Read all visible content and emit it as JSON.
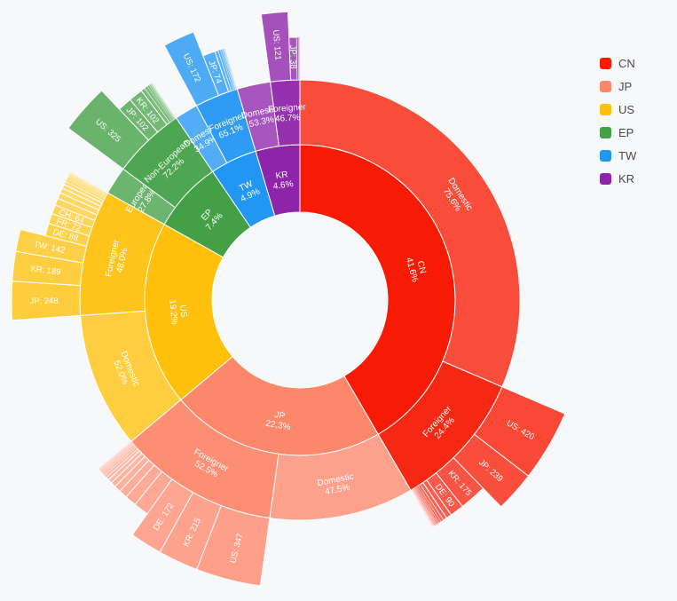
{
  "chart_data": {
    "type": "sunburst",
    "title": "",
    "legend_position": "top-right",
    "colors": {
      "CN": "#f71a04",
      "JP": "#fc876b",
      "US": "#fec00a",
      "EP": "#44a047",
      "TW": "#2196f3",
      "KR": "#8e24aa"
    },
    "legend": [
      {
        "key": "CN",
        "label": "CN"
      },
      {
        "key": "JP",
        "label": "JP"
      },
      {
        "key": "US",
        "label": "US"
      },
      {
        "key": "EP",
        "label": "EP"
      },
      {
        "key": "TW",
        "label": "TW"
      },
      {
        "key": "KR",
        "label": "KR"
      }
    ],
    "order": [
      "CN",
      "JP",
      "US",
      "EP",
      "TW",
      "KR"
    ],
    "nodes": [
      {
        "name": "CN",
        "share": 41.6,
        "label": "CN\n41.6%",
        "children": [
          {
            "name": "Domestic",
            "share": 75.6,
            "label": "Domestic\n75.6%"
          },
          {
            "name": "Foreigner",
            "share": 24.4,
            "label": "Foreigner\n24.4%",
            "children": [
              {
                "name": "US",
                "value": 420,
                "label": "US: 420"
              },
              {
                "name": "JP",
                "value": 239,
                "label": "JP: 239"
              },
              {
                "name": "KR",
                "value": 175,
                "label": "KR: 175"
              },
              {
                "name": "DE",
                "value": 90,
                "label": "DE: 90"
              },
              {
                "name": "other",
                "value": 35,
                "label": ""
              },
              {
                "name": "other",
                "value": 25,
                "label": ""
              },
              {
                "name": "other",
                "value": 18,
                "label": ""
              },
              {
                "name": "other",
                "value": 14,
                "label": ""
              },
              {
                "name": "other",
                "value": 11,
                "label": ""
              },
              {
                "name": "other",
                "value": 9,
                "label": ""
              },
              {
                "name": "other",
                "value": 7,
                "label": ""
              },
              {
                "name": "other",
                "value": 6,
                "label": ""
              },
              {
                "name": "other",
                "value": 5,
                "label": ""
              },
              {
                "name": "other",
                "value": 4,
                "label": ""
              },
              {
                "name": "other",
                "value": 3,
                "label": ""
              },
              {
                "name": "other",
                "value": 3,
                "label": ""
              },
              {
                "name": "other",
                "value": 2,
                "label": ""
              },
              {
                "name": "other",
                "value": 2,
                "label": ""
              }
            ]
          }
        ]
      },
      {
        "name": "JP",
        "share": 22.3,
        "label": "JP\n22.3%",
        "children": [
          {
            "name": "Domestic",
            "share": 47.5,
            "label": "Domestic\n47.5%"
          },
          {
            "name": "Foreigner",
            "share": 52.5,
            "label": "Foreigner\n52.5%",
            "children": [
              {
                "name": "US",
                "value": 347,
                "label": "US: 347"
              },
              {
                "name": "KR",
                "value": 215,
                "label": "KR: 215"
              },
              {
                "name": "DE",
                "value": 172,
                "label": "DE: 172"
              },
              {
                "name": "other",
                "value": 89,
                "label": ""
              },
              {
                "name": "other",
                "value": 68,
                "label": ""
              },
              {
                "name": "other",
                "value": 50,
                "label": ""
              },
              {
                "name": "other",
                "value": 38,
                "label": ""
              },
              {
                "name": "other",
                "value": 30,
                "label": ""
              },
              {
                "name": "other",
                "value": 24,
                "label": ""
              },
              {
                "name": "other",
                "value": 19,
                "label": ""
              },
              {
                "name": "other",
                "value": 15,
                "label": ""
              },
              {
                "name": "other",
                "value": 12,
                "label": ""
              },
              {
                "name": "other",
                "value": 10,
                "label": ""
              },
              {
                "name": "other",
                "value": 8,
                "label": ""
              },
              {
                "name": "other",
                "value": 7,
                "label": ""
              },
              {
                "name": "other",
                "value": 6,
                "label": ""
              },
              {
                "name": "other",
                "value": 5,
                "label": ""
              },
              {
                "name": "other",
                "value": 4,
                "label": ""
              }
            ]
          }
        ]
      },
      {
        "name": "US",
        "share": 19.2,
        "label": "US\n19.2%",
        "children": [
          {
            "name": "Domestic",
            "share": 52.0,
            "label": "Domestic\n52.0%"
          },
          {
            "name": "Foreigner",
            "share": 48.0,
            "label": "Foreigner\n48.0%",
            "children": [
              {
                "name": "JP",
                "value": 248,
                "label": "JP: 248"
              },
              {
                "name": "KR",
                "value": 189,
                "label": "KR: 189"
              },
              {
                "name": "TW",
                "value": 142,
                "label": "TW: 142"
              },
              {
                "name": "DE",
                "value": 88,
                "label": "DE: 88"
              },
              {
                "name": "FR",
                "value": 72,
                "label": "FR: 72"
              },
              {
                "name": "CH",
                "value": 64,
                "label": "CH: 64"
              },
              {
                "name": "other",
                "value": 50,
                "label": ""
              },
              {
                "name": "other",
                "value": 42,
                "label": ""
              },
              {
                "name": "other",
                "value": 35,
                "label": ""
              },
              {
                "name": "other",
                "value": 29,
                "label": ""
              },
              {
                "name": "other",
                "value": 24,
                "label": ""
              },
              {
                "name": "other",
                "value": 20,
                "label": ""
              },
              {
                "name": "other",
                "value": 16,
                "label": ""
              },
              {
                "name": "other",
                "value": 12,
                "label": ""
              },
              {
                "name": "other",
                "value": 9,
                "label": ""
              },
              {
                "name": "other",
                "value": 7,
                "label": ""
              },
              {
                "name": "other",
                "value": 5,
                "label": ""
              },
              {
                "name": "other",
                "value": 4,
                "label": ""
              }
            ]
          }
        ]
      },
      {
        "name": "EP",
        "share": 7.4,
        "label": "EP\n7.4%",
        "children": [
          {
            "name": "European",
            "share": 27.8,
            "label": "European\n27.8%"
          },
          {
            "name": "Non-European",
            "share": 72.2,
            "label": "Non-European\n72.2%",
            "children": [
              {
                "name": "US",
                "value": 325,
                "label": "US: 325"
              },
              {
                "name": "JP",
                "value": 102,
                "label": "JP: 102"
              },
              {
                "name": "KR",
                "value": 102,
                "label": "KR: 102"
              },
              {
                "name": "other",
                "value": 30,
                "label": ""
              },
              {
                "name": "other",
                "value": 22,
                "label": ""
              },
              {
                "name": "other",
                "value": 15,
                "label": ""
              },
              {
                "name": "other",
                "value": 10,
                "label": ""
              },
              {
                "name": "other",
                "value": 7,
                "label": ""
              },
              {
                "name": "other",
                "value": 5,
                "label": ""
              },
              {
                "name": "other",
                "value": 4,
                "label": ""
              },
              {
                "name": "other",
                "value": 3,
                "label": ""
              }
            ]
          }
        ]
      },
      {
        "name": "TW",
        "share": 4.9,
        "label": "TW\n4.9%",
        "children": [
          {
            "name": "Domestic",
            "share": 34.9,
            "label": "Domestic\n34.9%"
          },
          {
            "name": "Foreigner",
            "share": 65.1,
            "label": "Foreigner\n65.1%",
            "children": [
              {
                "name": "US",
                "value": 172,
                "label": "US: 172"
              },
              {
                "name": "JP",
                "value": 74,
                "label": "JP: 74"
              },
              {
                "name": "other",
                "value": 20,
                "label": ""
              },
              {
                "name": "other",
                "value": 14,
                "label": ""
              },
              {
                "name": "other",
                "value": 10,
                "label": ""
              },
              {
                "name": "other",
                "value": 7,
                "label": ""
              },
              {
                "name": "other",
                "value": 5,
                "label": ""
              },
              {
                "name": "other",
                "value": 4,
                "label": ""
              },
              {
                "name": "other",
                "value": 3,
                "label": ""
              }
            ]
          }
        ]
      },
      {
        "name": "KR",
        "share": 4.6,
        "label": "KR\n4.6%",
        "children": [
          {
            "name": "Domestic",
            "share": 53.3,
            "label": "Domestic\n53.3%"
          },
          {
            "name": "Foreigner",
            "share": 46.7,
            "label": "Foreigner\n46.7%",
            "children": [
              {
                "name": "US",
                "value": 121,
                "label": "US: 121"
              },
              {
                "name": "JP",
                "value": 38,
                "label": "JP: 38"
              },
              {
                "name": "other",
                "value": 8,
                "label": ""
              },
              {
                "name": "other",
                "value": 5,
                "label": ""
              },
              {
                "name": "other",
                "value": 3,
                "label": ""
              }
            ]
          }
        ]
      }
    ]
  }
}
